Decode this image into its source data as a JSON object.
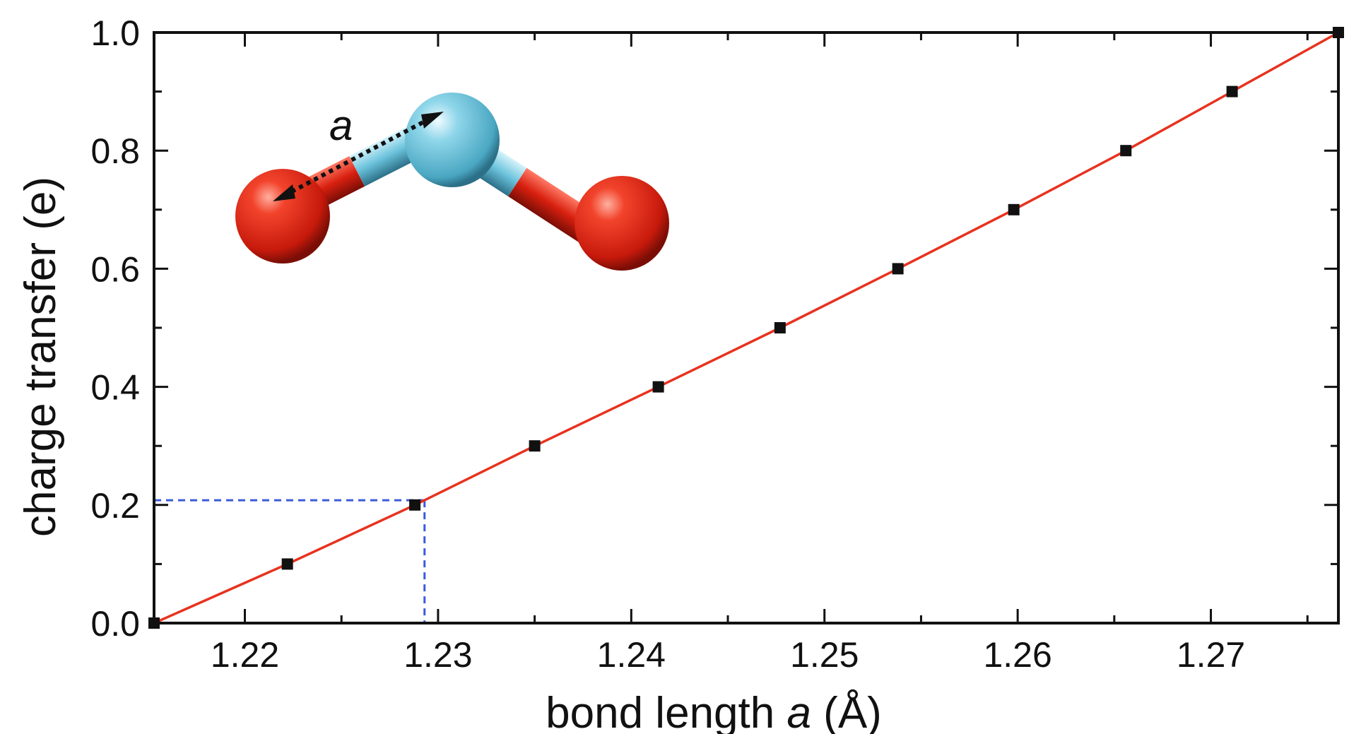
{
  "chart_data": {
    "type": "scatter",
    "title": "",
    "xlabel_prefix": "bond length ",
    "xlabel_var": "a",
    "xlabel_suffix": " (Å)",
    "ylabel": "charge transfer (e)",
    "xlim": [
      1.2153,
      1.2766
    ],
    "ylim": [
      0.0,
      1.0
    ],
    "x_ticks": [
      {
        "value": 1.22,
        "label": "1.22"
      },
      {
        "value": 1.23,
        "label": "1.23"
      },
      {
        "value": 1.24,
        "label": "1.24"
      },
      {
        "value": 1.25,
        "label": "1.25"
      },
      {
        "value": 1.26,
        "label": "1.26"
      },
      {
        "value": 1.27,
        "label": "1.27"
      }
    ],
    "y_ticks": [
      {
        "value": 0.0,
        "label": "0.0"
      },
      {
        "value": 0.2,
        "label": "0.2"
      },
      {
        "value": 0.4,
        "label": "0.4"
      },
      {
        "value": 0.6,
        "label": "0.6"
      },
      {
        "value": 0.8,
        "label": "0.8"
      },
      {
        "value": 1.0,
        "label": "1.0"
      }
    ],
    "grid": false,
    "series": [
      {
        "style": "markers",
        "marker": "square",
        "color": "#111111",
        "x": [
          1.2153,
          1.2222,
          1.2288,
          1.235,
          1.2414,
          1.2477,
          1.2538,
          1.2598,
          1.2656,
          1.2711,
          1.2766
        ],
        "y": [
          0.0,
          0.1,
          0.2,
          0.3,
          0.4,
          0.5,
          0.6,
          0.7,
          0.8,
          0.9,
          1.0
        ]
      },
      {
        "style": "line",
        "color": "#e8321e",
        "x": [
          1.2153,
          1.2222,
          1.2288,
          1.235,
          1.2414,
          1.2477,
          1.2538,
          1.2598,
          1.2656,
          1.2711,
          1.2766
        ],
        "y": [
          0.0,
          0.1,
          0.2,
          0.3,
          0.4,
          0.5,
          0.6,
          0.7,
          0.8,
          0.9,
          1.0
        ]
      }
    ],
    "guide": {
      "x": 1.2293,
      "y": 0.208,
      "color": "#3b5bdb",
      "style": "dashed"
    },
    "inset": {
      "label": "a",
      "description_colors": {
        "oxygen": "#e02a18",
        "center_atom": "#7fcde0"
      }
    }
  }
}
